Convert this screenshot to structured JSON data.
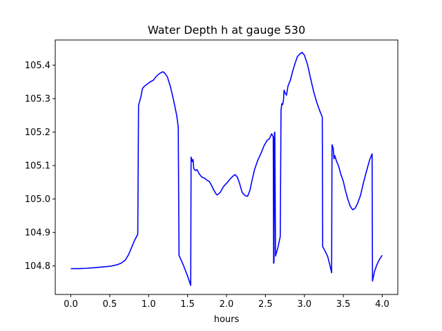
{
  "chart_data": {
    "type": "line",
    "title": "Water Depth h at gauge 530",
    "xlabel": "hours",
    "ylabel": "",
    "xlim": [
      -0.2,
      4.2
    ],
    "ylim": [
      104.715,
      105.475
    ],
    "x_ticks": [
      0.0,
      0.5,
      1.0,
      1.5,
      2.0,
      2.5,
      3.0,
      3.5,
      4.0
    ],
    "x_tick_labels": [
      "0.0",
      "0.5",
      "1.0",
      "1.5",
      "2.0",
      "2.5",
      "3.0",
      "3.5",
      "4.0"
    ],
    "y_ticks": [
      104.8,
      104.9,
      105.0,
      105.1,
      105.2,
      105.3,
      105.4
    ],
    "y_tick_labels": [
      "104.8",
      "104.9",
      "105.0",
      "105.1",
      "105.2",
      "105.3",
      "105.4"
    ],
    "grid": false,
    "legend": "none",
    "series": [
      {
        "color": "#0000ff",
        "points": [
          [
            0.0,
            104.792
          ],
          [
            0.1,
            104.792
          ],
          [
            0.2,
            104.793
          ],
          [
            0.3,
            104.795
          ],
          [
            0.4,
            104.797
          ],
          [
            0.5,
            104.799
          ],
          [
            0.6,
            104.804
          ],
          [
            0.65,
            104.809
          ],
          [
            0.7,
            104.818
          ],
          [
            0.74,
            104.833
          ],
          [
            0.78,
            104.855
          ],
          [
            0.82,
            104.877
          ],
          [
            0.86,
            104.895
          ],
          [
            0.87,
            105.28
          ],
          [
            0.9,
            105.305
          ],
          [
            0.92,
            105.33
          ],
          [
            0.95,
            105.338
          ],
          [
            0.98,
            105.343
          ],
          [
            1.02,
            105.35
          ],
          [
            1.06,
            105.355
          ],
          [
            1.1,
            105.367
          ],
          [
            1.14,
            105.375
          ],
          [
            1.18,
            105.38
          ],
          [
            1.2,
            105.378
          ],
          [
            1.24,
            105.365
          ],
          [
            1.28,
            105.335
          ],
          [
            1.32,
            105.295
          ],
          [
            1.36,
            105.25
          ],
          [
            1.38,
            105.215
          ],
          [
            1.39,
            104.832
          ],
          [
            1.45,
            104.8
          ],
          [
            1.5,
            104.77
          ],
          [
            1.54,
            104.742
          ],
          [
            1.545,
            105.125
          ],
          [
            1.56,
            105.112
          ],
          [
            1.57,
            105.118
          ],
          [
            1.58,
            105.09
          ],
          [
            1.6,
            105.085
          ],
          [
            1.62,
            105.088
          ],
          [
            1.65,
            105.075
          ],
          [
            1.68,
            105.066
          ],
          [
            1.72,
            105.062
          ],
          [
            1.75,
            105.056
          ],
          [
            1.78,
            105.052
          ],
          [
            1.8,
            105.044
          ],
          [
            1.83,
            105.03
          ],
          [
            1.86,
            105.017
          ],
          [
            1.88,
            105.012
          ],
          [
            1.92,
            105.02
          ],
          [
            1.96,
            105.037
          ],
          [
            2.0,
            105.047
          ],
          [
            2.04,
            105.058
          ],
          [
            2.08,
            105.068
          ],
          [
            2.11,
            105.073
          ],
          [
            2.14,
            105.065
          ],
          [
            2.17,
            105.045
          ],
          [
            2.2,
            105.02
          ],
          [
            2.24,
            105.01
          ],
          [
            2.27,
            105.008
          ],
          [
            2.3,
            105.025
          ],
          [
            2.33,
            105.058
          ],
          [
            2.36,
            105.088
          ],
          [
            2.4,
            105.115
          ],
          [
            2.44,
            105.135
          ],
          [
            2.48,
            105.158
          ],
          [
            2.52,
            105.175
          ],
          [
            2.55,
            105.18
          ],
          [
            2.58,
            105.195
          ],
          [
            2.6,
            105.185
          ],
          [
            2.605,
            104.808
          ],
          [
            2.61,
            104.812
          ],
          [
            2.615,
            105.195
          ],
          [
            2.62,
            105.2
          ],
          [
            2.63,
            104.83
          ],
          [
            2.66,
            104.855
          ],
          [
            2.69,
            104.888
          ],
          [
            2.7,
            105.265
          ],
          [
            2.71,
            105.285
          ],
          [
            2.72,
            105.282
          ],
          [
            2.73,
            105.292
          ],
          [
            2.74,
            105.325
          ],
          [
            2.75,
            105.318
          ],
          [
            2.77,
            105.31
          ],
          [
            2.79,
            105.338
          ],
          [
            2.82,
            105.355
          ],
          [
            2.85,
            105.382
          ],
          [
            2.88,
            105.405
          ],
          [
            2.91,
            105.425
          ],
          [
            2.94,
            105.433
          ],
          [
            2.97,
            105.438
          ],
          [
            3.0,
            105.43
          ],
          [
            3.04,
            105.402
          ],
          [
            3.08,
            105.36
          ],
          [
            3.12,
            105.32
          ],
          [
            3.16,
            105.288
          ],
          [
            3.2,
            105.262
          ],
          [
            3.23,
            105.245
          ],
          [
            3.235,
            104.858
          ],
          [
            3.27,
            104.843
          ],
          [
            3.3,
            104.828
          ],
          [
            3.33,
            104.8
          ],
          [
            3.35,
            104.78
          ],
          [
            3.355,
            105.162
          ],
          [
            3.37,
            105.152
          ],
          [
            3.38,
            105.12
          ],
          [
            3.39,
            105.13
          ],
          [
            3.41,
            105.115
          ],
          [
            3.44,
            105.098
          ],
          [
            3.47,
            105.073
          ],
          [
            3.5,
            105.053
          ],
          [
            3.53,
            105.023
          ],
          [
            3.56,
            104.998
          ],
          [
            3.59,
            104.978
          ],
          [
            3.62,
            104.968
          ],
          [
            3.65,
            104.972
          ],
          [
            3.68,
            104.985
          ],
          [
            3.72,
            105.01
          ],
          [
            3.76,
            105.05
          ],
          [
            3.8,
            105.085
          ],
          [
            3.84,
            105.118
          ],
          [
            3.87,
            105.135
          ],
          [
            3.875,
            104.755
          ],
          [
            3.9,
            104.783
          ],
          [
            3.93,
            104.803
          ],
          [
            3.96,
            104.818
          ],
          [
            4.0,
            104.832
          ]
        ]
      }
    ]
  }
}
